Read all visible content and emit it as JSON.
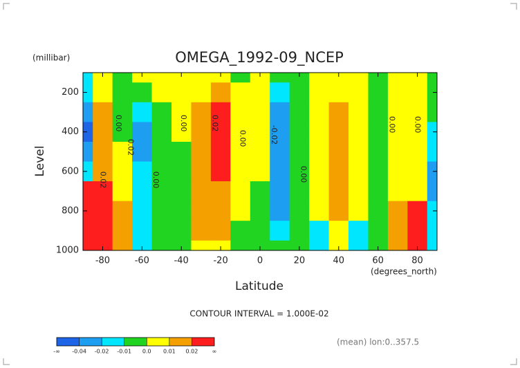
{
  "chart_data": {
    "type": "contour",
    "title": "OMEGA_1992-09_NCEP",
    "y_units": "(millibar)",
    "y_label": "Level",
    "x_label": "Latitude",
    "x_units": "(degrees_north)",
    "contour_interval_note": "CONTOUR INTERVAL = 1.000E-02",
    "mean_note": "(mean) lon:0..357.5",
    "xlim": [
      -90,
      90
    ],
    "ylim": [
      1000,
      100
    ],
    "xticks": [
      -80,
      -60,
      -40,
      -20,
      0,
      20,
      40,
      60,
      80
    ],
    "yticks": [
      200,
      400,
      600,
      800,
      1000
    ],
    "x": [
      -90,
      -80,
      -70,
      -60,
      -50,
      -40,
      -30,
      -20,
      -10,
      0,
      10,
      20,
      30,
      40,
      50,
      60,
      70,
      80,
      90
    ],
    "y": [
      100,
      200,
      300,
      400,
      500,
      600,
      700,
      800,
      900,
      1000
    ],
    "z": [
      [
        -0.015,
        0.005,
        -0.005,
        0.005,
        0.005,
        0.005,
        0.005,
        0.005,
        -0.005,
        0.005,
        -0.005,
        -0.005,
        0.005,
        0.005,
        0.005,
        -0.005,
        0.005,
        0.005,
        -0.005
      ],
      [
        -0.015,
        0.005,
        -0.005,
        -0.005,
        0.005,
        0.005,
        0.005,
        0.015,
        0.005,
        0.005,
        -0.015,
        -0.005,
        0.005,
        0.005,
        0.005,
        -0.005,
        0.005,
        0.005,
        -0.005
      ],
      [
        -0.03,
        0.015,
        -0.005,
        -0.015,
        -0.005,
        0.005,
        0.015,
        0.025,
        0.005,
        0.005,
        -0.025,
        -0.005,
        0.005,
        0.015,
        0.005,
        -0.005,
        0.005,
        0.005,
        -0.005
      ],
      [
        -0.05,
        0.015,
        -0.005,
        -0.025,
        -0.005,
        0.005,
        0.015,
        0.025,
        0.005,
        0.005,
        -0.025,
        -0.005,
        0.005,
        0.015,
        0.005,
        -0.005,
        0.005,
        0.005,
        -0.015
      ],
      [
        -0.03,
        0.015,
        0.005,
        -0.025,
        -0.005,
        -0.005,
        0.015,
        0.025,
        0.005,
        0.005,
        -0.025,
        -0.005,
        0.005,
        0.015,
        0.005,
        -0.005,
        0.005,
        0.005,
        -0.015
      ],
      [
        -0.015,
        0.015,
        0.005,
        -0.015,
        -0.005,
        -0.005,
        0.015,
        0.025,
        0.005,
        0.005,
        -0.025,
        -0.005,
        0.005,
        0.015,
        0.005,
        -0.005,
        0.005,
        0.005,
        -0.025
      ],
      [
        0.035,
        0.035,
        0.005,
        -0.015,
        -0.005,
        -0.005,
        0.015,
        0.015,
        0.005,
        -0.005,
        -0.025,
        -0.005,
        0.005,
        0.015,
        0.005,
        -0.005,
        0.005,
        0.005,
        -0.025
      ],
      [
        0.045,
        0.045,
        0.015,
        -0.015,
        -0.005,
        -0.005,
        0.015,
        0.015,
        0.005,
        -0.005,
        -0.025,
        -0.005,
        0.005,
        0.015,
        0.005,
        -0.005,
        0.015,
        0.025,
        -0.015
      ],
      [
        0.045,
        0.045,
        0.015,
        -0.015,
        -0.005,
        -0.005,
        0.015,
        0.015,
        -0.005,
        -0.005,
        -0.015,
        -0.005,
        -0.015,
        0.005,
        -0.015,
        -0.005,
        0.015,
        0.025,
        -0.015
      ],
      [
        0.045,
        0.045,
        0.015,
        -0.015,
        -0.005,
        -0.005,
        0.005,
        0.005,
        -0.005,
        -0.005,
        -0.005,
        -0.005,
        -0.015,
        0.005,
        -0.015,
        -0.005,
        0.015,
        0.025,
        -0.015
      ]
    ],
    "colorbar": {
      "ticks": [
        "-∞",
        -0.04,
        -0.02,
        -0.01,
        {
          "value": 0,
          "label": "0.0"
        },
        0.01,
        0.02,
        "∞"
      ],
      "colors": [
        "#1e64e6",
        "#1e9ef0",
        "#00e6ff",
        "#22d422",
        "#ffff00",
        "#f4a000",
        "#ff1e1e"
      ]
    },
    "contour_labels": [
      {
        "label": "0.00",
        "x": -72,
        "y": 356
      },
      {
        "label": "0.02",
        "x": -66,
        "y": 478
      },
      {
        "label": "0.02",
        "x": -80,
        "y": 643
      },
      {
        "label": "0.00",
        "x": -53,
        "y": 643
      },
      {
        "label": "0.00",
        "x": -39,
        "y": 356
      },
      {
        "label": "0.02",
        "x": -23,
        "y": 356
      },
      {
        "label": "0.00",
        "x": -9,
        "y": 433
      },
      {
        "label": "-0.02",
        "x": 7,
        "y": 415
      },
      {
        "label": "0.00",
        "x": 22,
        "y": 615
      },
      {
        "label": "0.00",
        "x": 67,
        "y": 363
      },
      {
        "label": "0.00",
        "x": 80,
        "y": 363
      }
    ]
  }
}
